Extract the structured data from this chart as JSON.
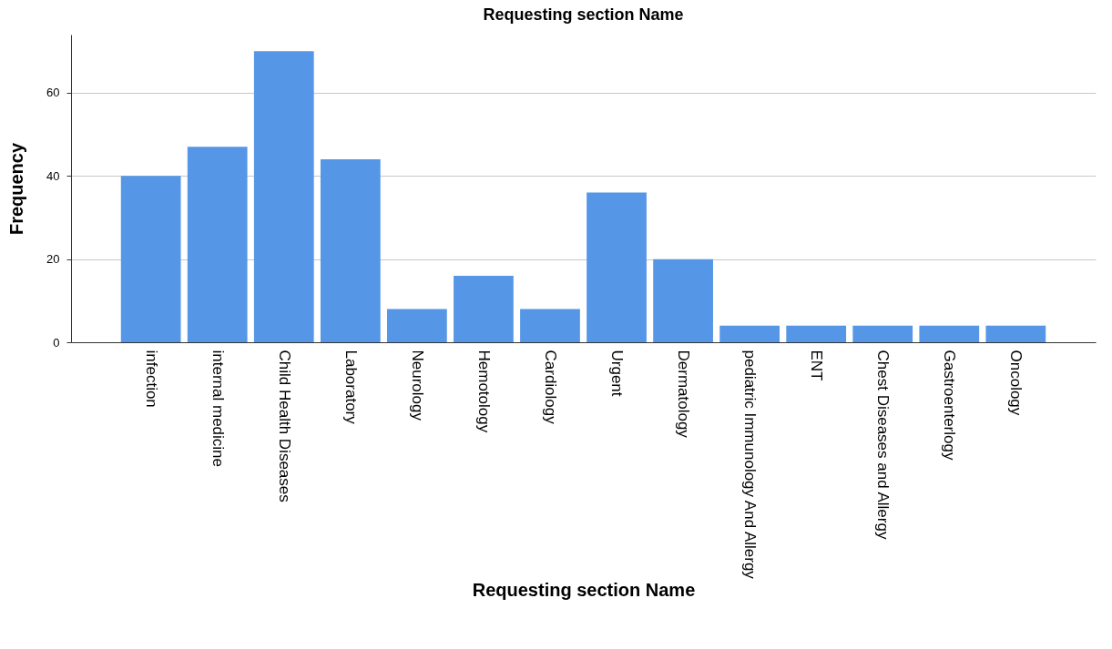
{
  "chart_data": {
    "type": "bar",
    "title": "Requesting section Name",
    "xlabel": "Requesting section Name",
    "ylabel": "Frequency",
    "categories": [
      "infection",
      "internal medicine",
      "Child Health Diseases",
      "Laboratory",
      "Neurology",
      "Hemotology",
      "Cardiology",
      "Urgent",
      "Dermatology",
      "pediatric Immunology And Allergy",
      "ENT",
      "Chest Diseases and Allergy",
      "Gastroenterlogy",
      "Oncology"
    ],
    "values": [
      40,
      47,
      70,
      44,
      8,
      16,
      8,
      36,
      20,
      4,
      4,
      4,
      4,
      4
    ],
    "color": "#5596e6",
    "ylim": [
      0,
      74
    ],
    "yticks": [
      0,
      20,
      40,
      60
    ],
    "grid": "y"
  }
}
